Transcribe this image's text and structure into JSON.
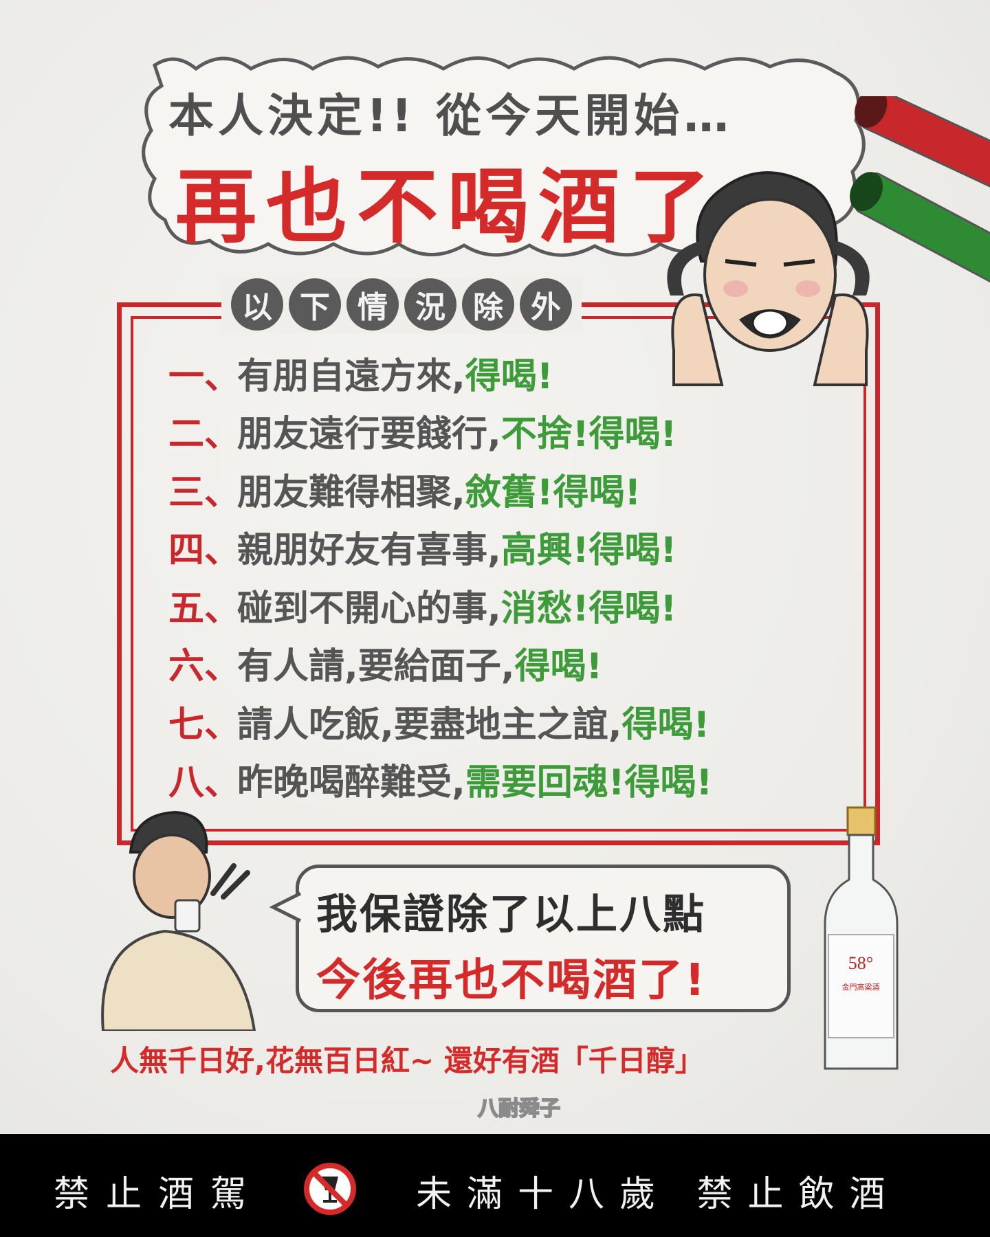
{
  "poster": {
    "headline": "本人決定!! 從今天開始…",
    "main_title": "再也不喝酒了",
    "exceptions_chars": [
      "以",
      "下",
      "情",
      "況",
      "除",
      "外"
    ],
    "rules": [
      {
        "num": "一、",
        "text": "有朋自遠方來,",
        "highlight": "得喝!"
      },
      {
        "num": "二、",
        "text": "朋友遠行要餞行,",
        "highlight": "不捨!得喝!"
      },
      {
        "num": "三、",
        "text": "朋友難得相聚,",
        "highlight": "敘舊!得喝!"
      },
      {
        "num": "四、",
        "text": "親朋好友有喜事,",
        "highlight": "高興!得喝!"
      },
      {
        "num": "五、",
        "text": "碰到不開心的事,",
        "highlight": "消愁!得喝!"
      },
      {
        "num": "六、",
        "text": "有人請,要給面子,",
        "highlight": "得喝!"
      },
      {
        "num": "七、",
        "text": "請人吃飯,要盡地主之誼,",
        "highlight": "得喝!"
      },
      {
        "num": "八、",
        "text": "昨晚喝醉難受,",
        "highlight": "需要回魂!得喝!"
      }
    ],
    "promise_line1": "我保證除了以上八點",
    "promise_line2": "今後再也不喝酒了!",
    "slogan": "人無千日好,花無百日紅~ 還好有酒「千日醇」",
    "logo_text": "八耐舜子",
    "bottle_label": "58°",
    "bottle_name": "金門高粱酒"
  },
  "warning": {
    "left": "禁止酒駕",
    "right": "未滿十八歲 禁止飲酒",
    "icon": "no-drinking-icon"
  },
  "colors": {
    "red": "#d42a2a",
    "green": "#3e9b3a",
    "gray_text": "#555555",
    "frame_red": "#c8282b"
  }
}
